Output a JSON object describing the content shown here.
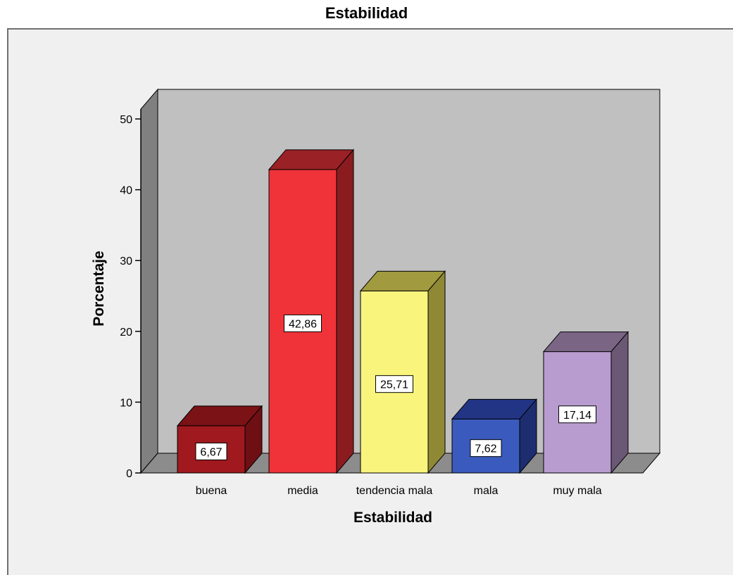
{
  "chart_data": {
    "type": "bar",
    "title": "Estabilidad",
    "xlabel": "Estabilidad",
    "ylabel": "Porcentaje",
    "categories": [
      "buena",
      "media",
      "tendencia mala",
      "mala",
      "muy mala"
    ],
    "values": [
      6.67,
      42.86,
      25.71,
      7.62,
      17.14
    ],
    "data_labels": [
      "6,67",
      "42,86",
      "25,71",
      "7,62",
      "17,14"
    ],
    "ylim": [
      0,
      50
    ],
    "yticks": [
      0,
      10,
      20,
      30,
      40,
      50
    ],
    "grid": false,
    "three_d": true,
    "colors": [
      {
        "front": "#a0191e",
        "top": "#7a1216",
        "side": "#6e1013"
      },
      {
        "front": "#ef3339",
        "top": "#9a2126",
        "side": "#8a1c20"
      },
      {
        "front": "#f9f57c",
        "top": "#a19a3e",
        "side": "#8f8936"
      },
      {
        "front": "#3a5bbd",
        "top": "#223585",
        "side": "#1d2d70"
      },
      {
        "front": "#b89cd0",
        "top": "#7a6585",
        "side": "#6a5875"
      }
    ],
    "wall_color": "#c0c0c0",
    "floor_color": "#8c8c8c"
  }
}
